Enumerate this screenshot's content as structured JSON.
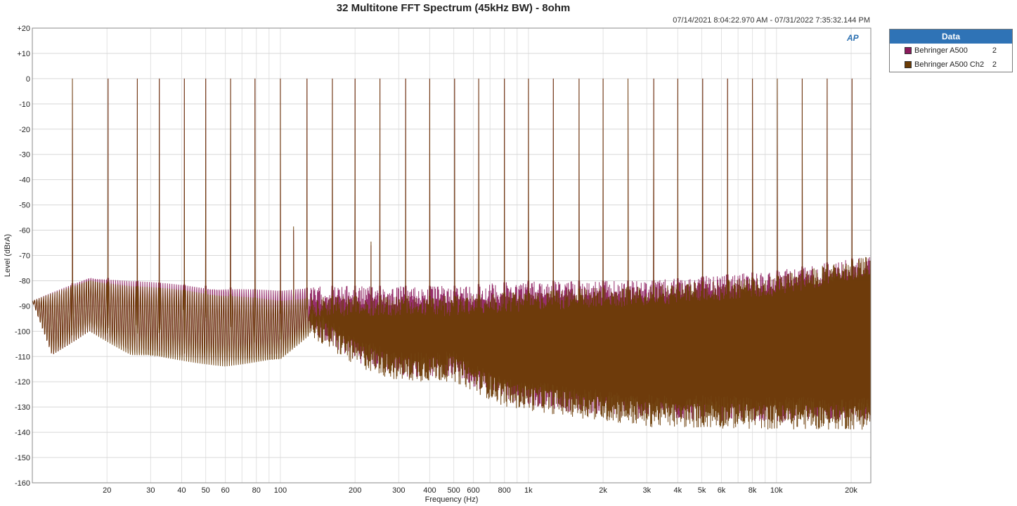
{
  "title": "32 Multitone FFT Spectrum (45kHz BW) - 8ohm",
  "timestamp": "07/14/2021 8:04:22.970 AM - 07/31/2022 7:35:32.144 PM",
  "logo_text": "AP",
  "legend": {
    "header": "Data",
    "items": [
      {
        "name": "Behringer A500",
        "channel": "2",
        "color": "#8b1a5c"
      },
      {
        "name": "Behringer A500 Ch2",
        "channel": "2",
        "color": "#6b3c06"
      }
    ]
  },
  "chart_data": {
    "type": "line",
    "title": "32 Multitone FFT Spectrum (45kHz BW) - 8ohm",
    "xlabel": "Frequency (Hz)",
    "ylabel": "Level (dBrA)",
    "x_scale": "log",
    "xlim": [
      10,
      24000
    ],
    "ylim": [
      -160,
      20
    ],
    "grid": true,
    "legend_position": "top-right",
    "x_ticks": [
      {
        "value": 20,
        "label": "20"
      },
      {
        "value": 30,
        "label": "30"
      },
      {
        "value": 40,
        "label": "40"
      },
      {
        "value": 50,
        "label": "50"
      },
      {
        "value": 60,
        "label": "60"
      },
      {
        "value": 80,
        "label": "80"
      },
      {
        "value": 100,
        "label": "100"
      },
      {
        "value": 200,
        "label": "200"
      },
      {
        "value": 300,
        "label": "300"
      },
      {
        "value": 400,
        "label": "400"
      },
      {
        "value": 500,
        "label": "500"
      },
      {
        "value": 600,
        "label": "600"
      },
      {
        "value": 800,
        "label": "800"
      },
      {
        "value": 1000,
        "label": "1k"
      },
      {
        "value": 2000,
        "label": "2k"
      },
      {
        "value": 3000,
        "label": "3k"
      },
      {
        "value": 4000,
        "label": "4k"
      },
      {
        "value": 5000,
        "label": "5k"
      },
      {
        "value": 6000,
        "label": "6k"
      },
      {
        "value": 8000,
        "label": "8k"
      },
      {
        "value": 10000,
        "label": "10k"
      },
      {
        "value": 20000,
        "label": "20k"
      }
    ],
    "y_ticks": [
      {
        "value": 20,
        "label": "+20"
      },
      {
        "value": 10,
        "label": "+10"
      },
      {
        "value": 0,
        "label": "0"
      },
      {
        "value": -10,
        "label": "-10"
      },
      {
        "value": -20,
        "label": "-20"
      },
      {
        "value": -30,
        "label": "-30"
      },
      {
        "value": -40,
        "label": "-40"
      },
      {
        "value": -50,
        "label": "-50"
      },
      {
        "value": -60,
        "label": "-60"
      },
      {
        "value": -70,
        "label": "-70"
      },
      {
        "value": -80,
        "label": "-80"
      },
      {
        "value": -90,
        "label": "-90"
      },
      {
        "value": -100,
        "label": "-100"
      },
      {
        "value": -110,
        "label": "-110"
      },
      {
        "value": -120,
        "label": "-120"
      },
      {
        "value": -130,
        "label": "-130"
      },
      {
        "value": -140,
        "label": "-140"
      },
      {
        "value": -150,
        "label": "-150"
      },
      {
        "value": -160,
        "label": "-160"
      }
    ],
    "tone_frequencies_hz": [
      14.5,
      20.2,
      26.5,
      32.5,
      41,
      50,
      63,
      79,
      100,
      128,
      162,
      200,
      252,
      320,
      400,
      504,
      630,
      800,
      1000,
      1260,
      1600,
      2000,
      2520,
      3200,
      4000,
      5040,
      6350,
      8000,
      10080,
      12700,
      16000,
      20160
    ],
    "tone_level_dbra": 0,
    "series": [
      {
        "name": "Behringer A500",
        "color": "#8b1a5c",
        "noise_floor_points": [
          [
            10,
            -88
          ],
          [
            12,
            -110
          ],
          [
            17,
            -100
          ],
          [
            25,
            -108
          ],
          [
            40,
            -110
          ],
          [
            60,
            -112
          ],
          [
            100,
            -110
          ],
          [
            130,
            -100
          ],
          [
            200,
            -112
          ],
          [
            300,
            -118
          ],
          [
            500,
            -118
          ],
          [
            800,
            -128
          ],
          [
            1500,
            -132
          ],
          [
            3000,
            -135
          ],
          [
            10000,
            -136
          ],
          [
            24000,
            -136
          ]
        ],
        "noise_top_points": [
          [
            10,
            -88
          ],
          [
            17,
            -78
          ],
          [
            25,
            -80
          ],
          [
            50,
            -82
          ],
          [
            100,
            -84
          ],
          [
            150,
            -82
          ],
          [
            300,
            -82
          ],
          [
            500,
            -82
          ],
          [
            1000,
            -80
          ],
          [
            3000,
            -80
          ],
          [
            10000,
            -76
          ],
          [
            24000,
            -70
          ]
        ]
      },
      {
        "name": "Behringer A500 Ch2",
        "color": "#6b3c06",
        "noise_floor_points": [
          [
            10,
            -88
          ],
          [
            12,
            -110
          ],
          [
            17,
            -100
          ],
          [
            25,
            -110
          ],
          [
            40,
            -112
          ],
          [
            60,
            -114
          ],
          [
            100,
            -112
          ],
          [
            130,
            -102
          ],
          [
            200,
            -114
          ],
          [
            300,
            -120
          ],
          [
            500,
            -120
          ],
          [
            800,
            -130
          ],
          [
            1500,
            -134
          ],
          [
            3000,
            -138
          ],
          [
            10000,
            -139
          ],
          [
            24000,
            -139
          ]
        ],
        "noise_top_points": [
          [
            10,
            -88
          ],
          [
            17,
            -79
          ],
          [
            25,
            -82
          ],
          [
            50,
            -84
          ],
          [
            100,
            -88
          ],
          [
            150,
            -86
          ],
          [
            300,
            -86
          ],
          [
            500,
            -86
          ],
          [
            1000,
            -84
          ],
          [
            3000,
            -82
          ],
          [
            10000,
            -78
          ],
          [
            24000,
            -70
          ]
        ]
      }
    ],
    "spurs": [
      {
        "freq_hz": 113,
        "level_dbra": -60
      },
      {
        "freq_hz": 232,
        "level_dbra": -66
      }
    ]
  }
}
